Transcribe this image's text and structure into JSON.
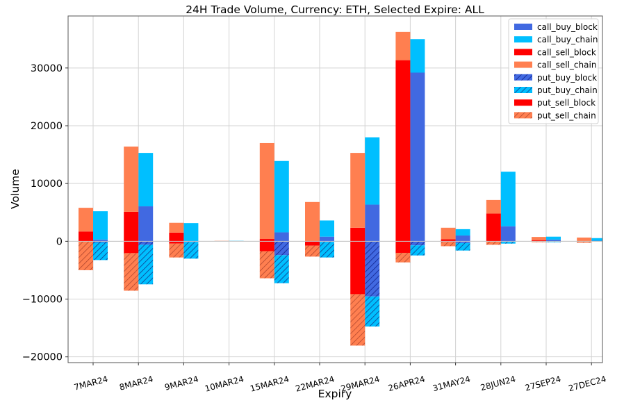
{
  "chart_data": {
    "type": "bar",
    "title": "24H Trade Volume, Currency: ETH, Selected Expire: ALL",
    "xlabel": "Expiry",
    "ylabel": "Volume",
    "ylim": [
      -21000,
      39000
    ],
    "yticks": [
      -20000,
      -10000,
      0,
      10000,
      20000,
      30000
    ],
    "ytick_labels": [
      "−20000",
      "−10000",
      "0",
      "10000",
      "20000",
      "30000"
    ],
    "grid": true,
    "legend_position": "top-right",
    "categories": [
      "7MAR24",
      "8MAR24",
      "9MAR24",
      "10MAR24",
      "15MAR24",
      "22MAR24",
      "29MAR24",
      "26APR24",
      "31MAY24",
      "28JUN24",
      "27SEP24",
      "27DEC24"
    ],
    "series": [
      {
        "name": "call_buy_block",
        "color": "#4169e1",
        "hatch": false,
        "bar": "buy",
        "direction": "up",
        "values": [
          300,
          6050,
          0,
          20,
          1550,
          800,
          6350,
          29200,
          1000,
          2600,
          300,
          100
        ]
      },
      {
        "name": "call_buy_chain",
        "color": "#00bfff",
        "hatch": false,
        "bar": "buy",
        "direction": "up",
        "values": [
          4900,
          9250,
          3150,
          60,
          12350,
          2800,
          11650,
          5800,
          1100,
          9450,
          500,
          450
        ]
      },
      {
        "name": "call_sell_block",
        "color": "#ff0000",
        "hatch": false,
        "bar": "sell",
        "direction": "up",
        "values": [
          1700,
          5100,
          1500,
          20,
          400,
          0,
          2350,
          31350,
          350,
          4800,
          200,
          50
        ]
      },
      {
        "name": "call_sell_chain",
        "color": "#ff7f50",
        "hatch": false,
        "bar": "sell",
        "direction": "up",
        "values": [
          4100,
          11300,
          1700,
          60,
          16600,
          6800,
          12950,
          4900,
          2000,
          2350,
          550,
          600
        ]
      },
      {
        "name": "put_buy_block",
        "color": "#4169e1",
        "hatch": true,
        "bar": "buy",
        "direction": "down",
        "values": [
          -200,
          -600,
          -100,
          0,
          -2400,
          -100,
          -9550,
          -700,
          -300,
          -100,
          -50,
          0
        ]
      },
      {
        "name": "put_buy_chain",
        "color": "#00bfff",
        "hatch": true,
        "bar": "buy",
        "direction": "down",
        "values": [
          -3050,
          -6850,
          -2900,
          0,
          -4850,
          -2700,
          -5200,
          -1750,
          -1300,
          -300,
          -100,
          0
        ]
      },
      {
        "name": "put_sell_block",
        "color": "#ff0000",
        "hatch": false,
        "bar": "sell",
        "direction": "down",
        "values": [
          0,
          -2050,
          -400,
          0,
          -1700,
          -750,
          -9150,
          -2000,
          -100,
          0,
          0,
          0
        ]
      },
      {
        "name": "put_sell_chain",
        "color": "#ff7f50",
        "hatch": true,
        "bar": "sell",
        "direction": "down",
        "values": [
          -5000,
          -6500,
          -2400,
          0,
          -4700,
          -1900,
          -8900,
          -1650,
          -750,
          -600,
          -150,
          -250
        ]
      }
    ]
  }
}
